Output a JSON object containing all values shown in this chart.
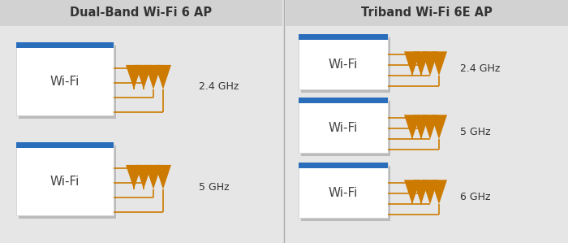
{
  "bg_color": "#e6e6e6",
  "panel_bg": "#e6e6e6",
  "box_fill": "#ffffff",
  "box_edge": "#cccccc",
  "blue_bar": "#2a6ebb",
  "orange": "#cc7a00",
  "text_color": "#333333",
  "shadow_color": "#bbbbbb",
  "title_left": "Dual-Band Wi-Fi 6 AP",
  "title_right": "Triband Wi-Fi 6E AP",
  "left_labels": [
    "2.4 GHz",
    "5 GHz"
  ],
  "right_labels": [
    "2.4 GHz",
    "5 GHz",
    "6 GHz"
  ],
  "wifi_text": "Wi-Fi",
  "title_fontsize": 10.5,
  "label_fontsize": 9,
  "wifi_fontsize": 11
}
